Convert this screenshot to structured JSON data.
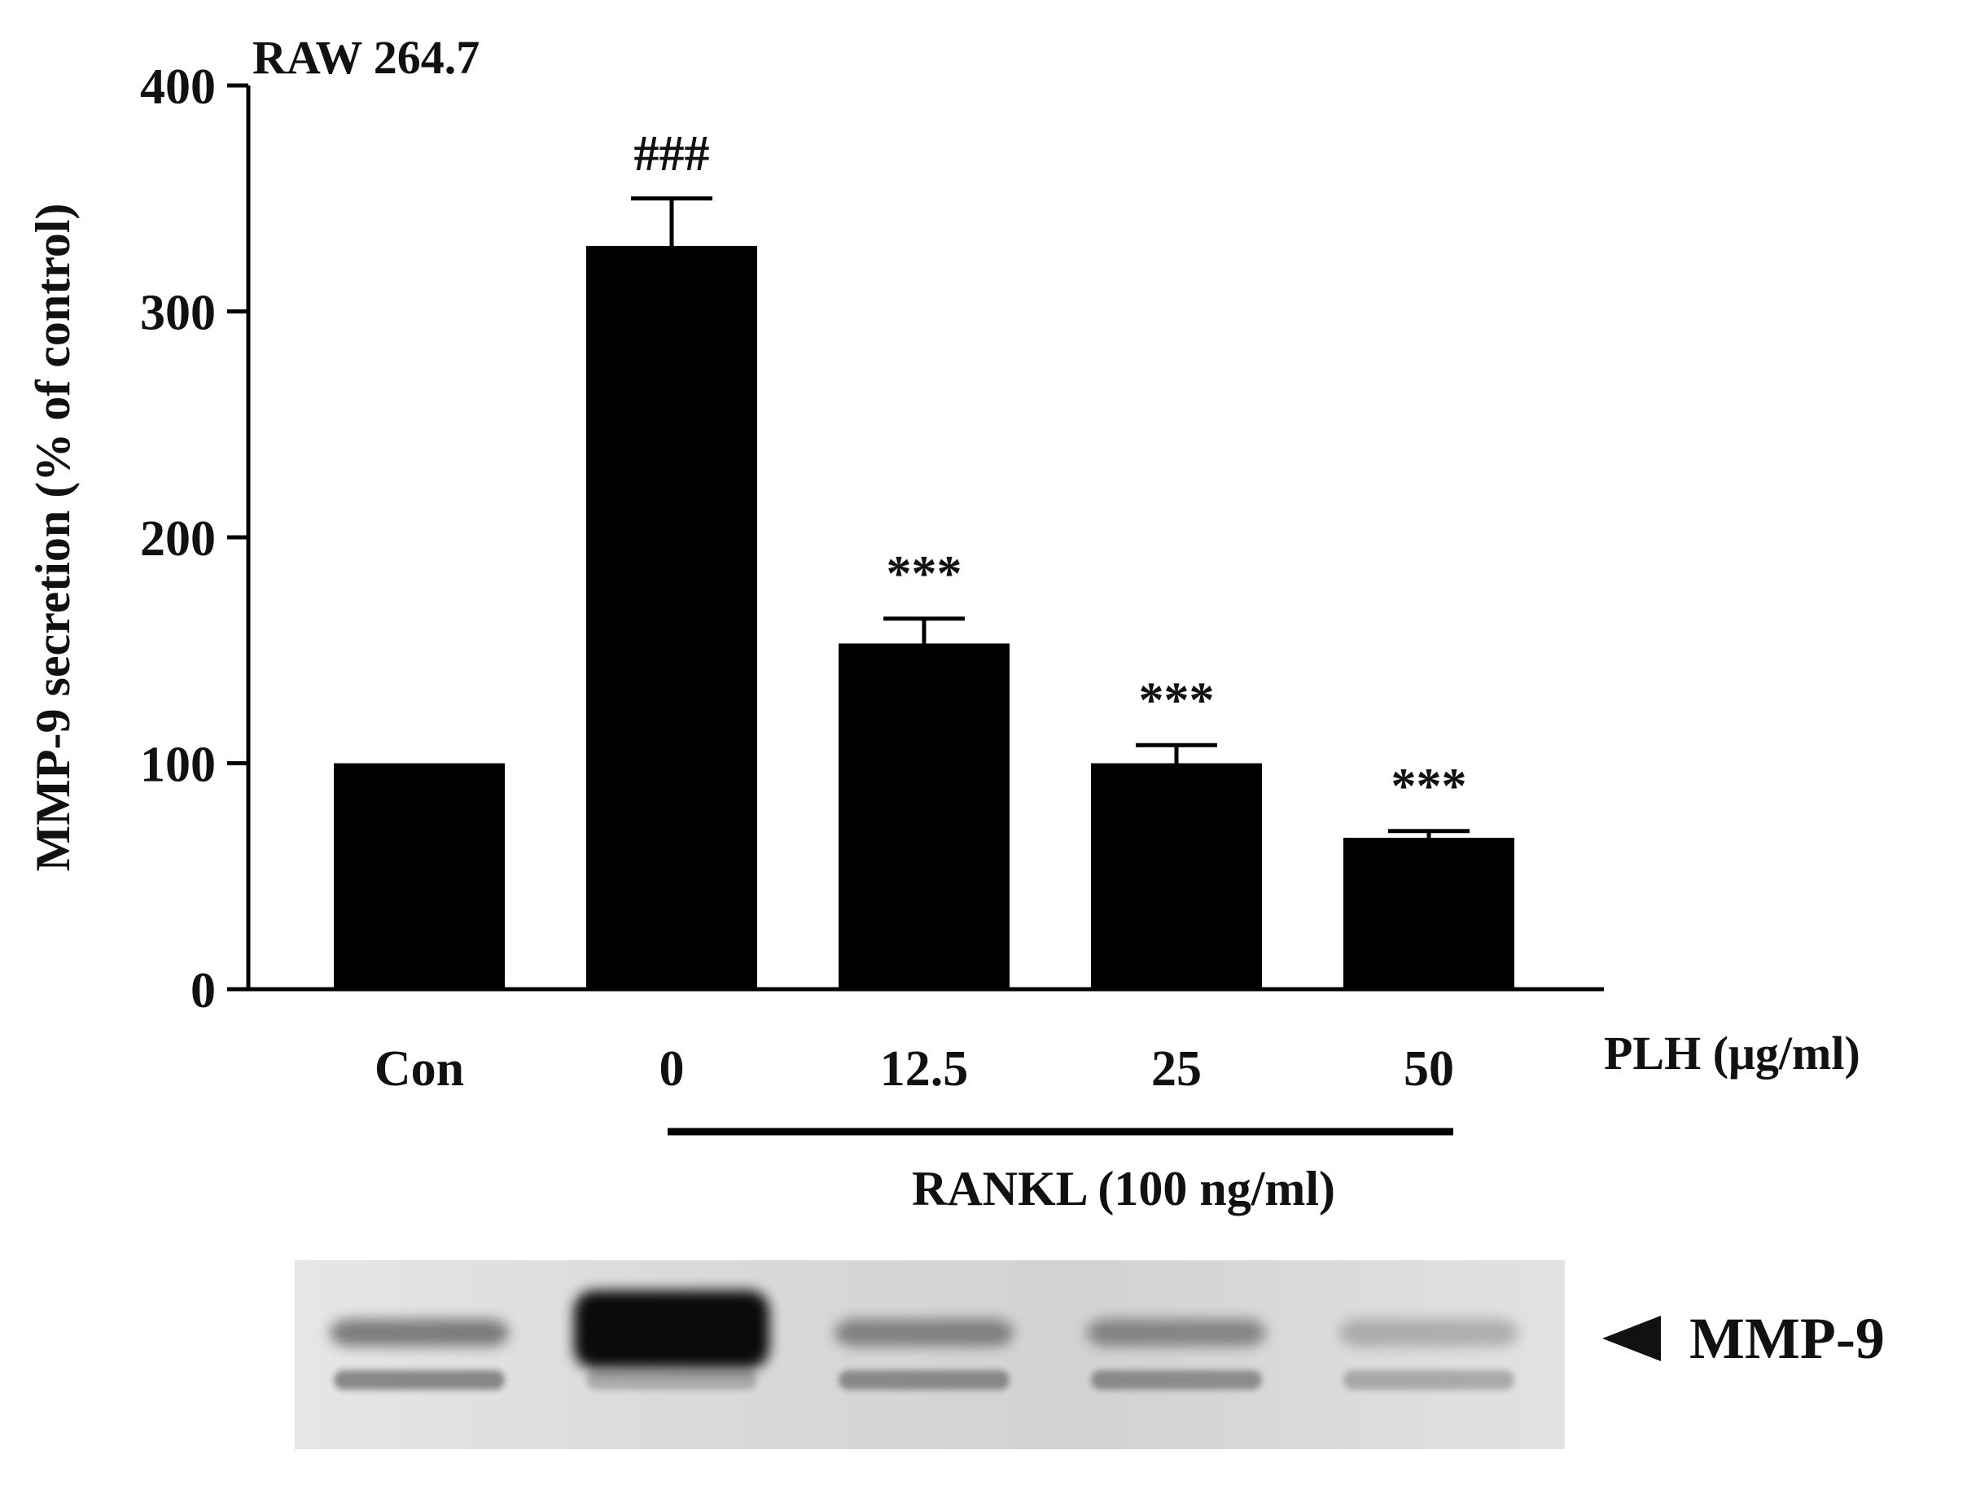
{
  "figure": {
    "panel_label": "RAW 264.7",
    "x_group_label": "PLH (μg/ml)",
    "treatment_label": "RANKL (100 ng/ml)",
    "blot_label": "MMP-9",
    "blot_arrow_icon": "left-arrow-icon",
    "blot_band_intensity": [
      0.45,
      1.0,
      0.4,
      0.38,
      0.22
    ]
  },
  "chart_data": {
    "type": "bar",
    "title": "",
    "xlabel": "",
    "ylabel": "MMP-9 secretion (% of control)",
    "ylim": [
      0,
      400
    ],
    "yticks": [
      0,
      100,
      200,
      300,
      400
    ],
    "categories": [
      "Con",
      "0",
      "12.5",
      "25",
      "50"
    ],
    "values": [
      100,
      329,
      153,
      100,
      67
    ],
    "errors": [
      0,
      21,
      11,
      8,
      3
    ],
    "annotations": [
      "",
      "###",
      "***",
      "***",
      "***"
    ],
    "bar_color": "#000000",
    "grid": false,
    "legend": "none"
  }
}
